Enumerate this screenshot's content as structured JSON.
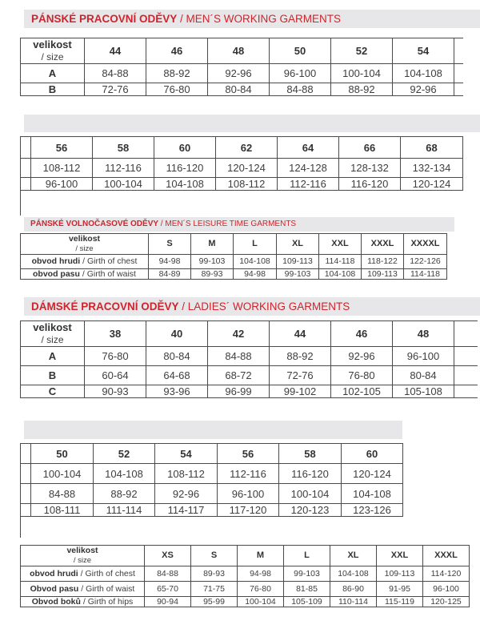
{
  "colors": {
    "accent_red": "#d0232b",
    "bar_gray": "#e7e7e9",
    "table_border": "#4a4a4a",
    "text": "#3e3e3e"
  },
  "headers": {
    "mens_working": {
      "cz": "PÁNSKÉ PRACOVNÍ ODĚVY",
      "en": " / MEN´S WORKING GARMENTS"
    },
    "mens_leisure": {
      "cz": "PÁNSKÉ VOLNOČASOVÉ ODĚVY",
      "en": " / MEN´S LEISURE TIME GARMENTS"
    },
    "ladies_working": {
      "cz": "DÁMSKÉ PRACOVNÍ ODĚVY",
      "en": " / LADIES´ WORKING GARMENTS"
    }
  },
  "tables": {
    "mens_part1": {
      "corner": {
        "line1": "velikost",
        "line2": "/ size"
      },
      "sizes": [
        "44",
        "46",
        "48",
        "50",
        "52",
        "54"
      ],
      "rows": [
        {
          "label": "A",
          "values": [
            "84-88",
            "88-92",
            "92-96",
            "96-100",
            "100-104",
            "104-108"
          ]
        },
        {
          "label": "B",
          "values": [
            "72-76",
            "76-80",
            "80-84",
            "84-88",
            "88-92",
            "92-96"
          ]
        }
      ]
    },
    "mens_part2": {
      "sizes": [
        "56",
        "58",
        "60",
        "62",
        "64",
        "66",
        "68"
      ],
      "rows": [
        {
          "values": [
            "108-112",
            "112-116",
            "116-120",
            "120-124",
            "124-128",
            "128-132",
            "132-134"
          ]
        },
        {
          "values": [
            "96-100",
            "100-104",
            "104-108",
            "108-112",
            "112-116",
            "116-120",
            "120-124"
          ]
        }
      ]
    },
    "mens_leisure": {
      "corner": {
        "line1": "velikost",
        "line2": "/ size"
      },
      "sizes": [
        "S",
        "M",
        "L",
        "XL",
        "XXL",
        "XXXL",
        "XXXXL"
      ],
      "rows": [
        {
          "label_cz": "obvod hrudi ",
          "label_en": "/ Girth of chest",
          "values": [
            "94-98",
            "99-103",
            "104-108",
            "109-113",
            "114-118",
            "118-122",
            "122-126"
          ]
        },
        {
          "label_cz": "obvod pasu ",
          "label_en": "/ Girth of waist",
          "values": [
            "84-89",
            "89-93",
            "94-98",
            "99-103",
            "104-108",
            "109-113",
            "114-118"
          ]
        }
      ]
    },
    "ladies_part1": {
      "corner": {
        "line1": "velikost",
        "line2": "/ size"
      },
      "sizes": [
        "38",
        "40",
        "42",
        "44",
        "46",
        "48"
      ],
      "rows": [
        {
          "label": "A",
          "values": [
            "76-80",
            "80-84",
            "84-88",
            "88-92",
            "92-96",
            "96-100"
          ]
        },
        {
          "label": "B",
          "values": [
            "60-64",
            "64-68",
            "68-72",
            "72-76",
            "76-80",
            "80-84"
          ]
        },
        {
          "label": "C",
          "values": [
            "90-93",
            "93-96",
            "96-99",
            "99-102",
            "102-105",
            "105-108"
          ]
        }
      ]
    },
    "ladies_part2": {
      "sizes": [
        "50",
        "52",
        "54",
        "56",
        "58",
        "60"
      ],
      "rows": [
        {
          "values": [
            "100-104",
            "104-108",
            "108-112",
            "112-116",
            "116-120",
            "120-124"
          ]
        },
        {
          "values": [
            "84-88",
            "88-92",
            "92-96",
            "96-100",
            "100-104",
            "104-108"
          ]
        },
        {
          "values": [
            "108-111",
            "111-114",
            "114-117",
            "117-120",
            "120-123",
            "123-126"
          ]
        }
      ]
    },
    "ladies_leisure": {
      "corner": {
        "line1": "velikost",
        "line2": "/ size"
      },
      "sizes": [
        "XS",
        "S",
        "M",
        "L",
        "XL",
        "XXL",
        "XXXL"
      ],
      "rows": [
        {
          "label_cz": "obvod hrudi ",
          "label_en": "/ Girth of chest",
          "values": [
            "84-88",
            "89-93",
            "94-98",
            "99-103",
            "104-108",
            "109-113",
            "114-120"
          ]
        },
        {
          "label_cz": "Obvod pasu ",
          "label_en": "/ Girth of waist",
          "values": [
            "65-70",
            "71-75",
            "76-80",
            "81-85",
            "86-90",
            "91-95",
            "96-100"
          ]
        },
        {
          "label_cz": "Obvod boků ",
          "label_en": "/ Girth of hips",
          "values": [
            "90-94",
            "95-99",
            "100-104",
            "105-109",
            "110-114",
            "115-119",
            "120-125"
          ]
        }
      ]
    }
  }
}
